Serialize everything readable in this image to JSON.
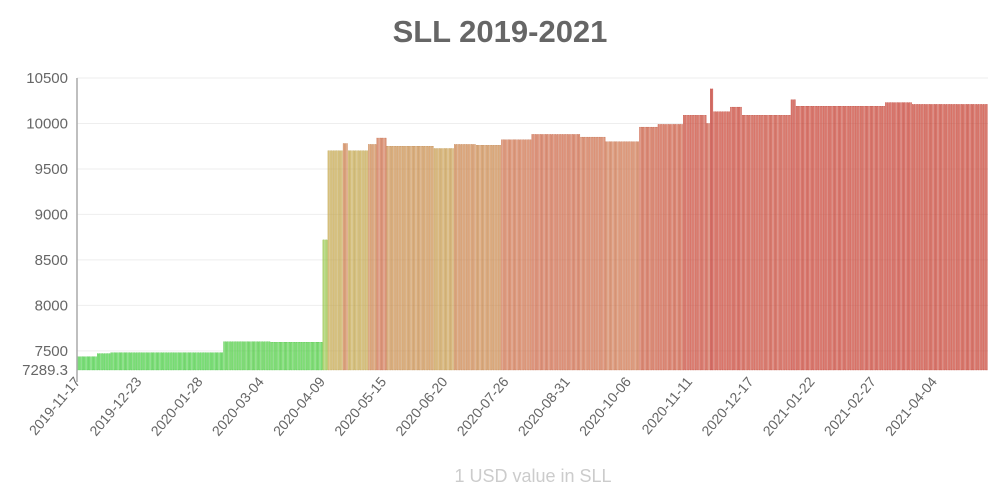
{
  "chart_data": {
    "type": "bar",
    "title": "SLL 2019-2021",
    "xlabel": "1 USD value in SLL",
    "ylabel": "",
    "ylim": [
      7289.3,
      10500
    ],
    "yticks": [
      7289.3,
      7500,
      8000,
      8500,
      9000,
      9500,
      10000,
      10500
    ],
    "ytick_labels": [
      "7289.3",
      "7500",
      "8000",
      "8500",
      "9000",
      "9500",
      "10000",
      "10500"
    ],
    "xtick_labels": [
      "2019-11-17",
      "2019-12-23",
      "2020-01-28",
      "2020-03-04",
      "2020-04-09",
      "2020-05-15",
      "2020-06-20",
      "2020-07-26",
      "2020-08-31",
      "2020-10-06",
      "2020-11-11",
      "2020-12-17",
      "2021-01-22",
      "2021-02-27",
      "2021-04-04"
    ],
    "grid": true,
    "legend": "none",
    "color_scale": "green (low) to yellow to red (high)",
    "segments": [
      {
        "from": "2019-11-17",
        "to": "2019-11-28",
        "value": 7435
      },
      {
        "from": "2019-11-29",
        "to": "2019-12-06",
        "value": 7470
      },
      {
        "from": "2019-12-07",
        "to": "2020-02-11",
        "value": 7480
      },
      {
        "from": "2020-02-12",
        "to": "2020-03-10",
        "value": 7600
      },
      {
        "from": "2020-03-11",
        "to": "2020-04-10",
        "value": 7595
      },
      {
        "from": "2020-04-11",
        "to": "2020-04-13",
        "value": 8720
      },
      {
        "from": "2020-04-14",
        "to": "2020-04-22",
        "value": 9700
      },
      {
        "from": "2020-04-23",
        "to": "2020-04-25",
        "value": 9780
      },
      {
        "from": "2020-04-26",
        "to": "2020-05-07",
        "value": 9700
      },
      {
        "from": "2020-05-08",
        "to": "2020-05-12",
        "value": 9770
      },
      {
        "from": "2020-05-13",
        "to": "2020-05-18",
        "value": 9840
      },
      {
        "from": "2020-05-19",
        "to": "2020-06-15",
        "value": 9750
      },
      {
        "from": "2020-06-16",
        "to": "2020-06-27",
        "value": 9725
      },
      {
        "from": "2020-06-28",
        "to": "2020-07-10",
        "value": 9770
      },
      {
        "from": "2020-07-11",
        "to": "2020-07-25",
        "value": 9760
      },
      {
        "from": "2020-07-26",
        "to": "2020-08-12",
        "value": 9820
      },
      {
        "from": "2020-08-13",
        "to": "2020-09-10",
        "value": 9880
      },
      {
        "from": "2020-09-11",
        "to": "2020-09-25",
        "value": 9850
      },
      {
        "from": "2020-09-26",
        "to": "2020-10-15",
        "value": 9800
      },
      {
        "from": "2020-10-16",
        "to": "2020-10-26",
        "value": 9960
      },
      {
        "from": "2020-10-27",
        "to": "2020-11-10",
        "value": 9990
      },
      {
        "from": "2020-11-11",
        "to": "2020-11-24",
        "value": 10090
      },
      {
        "from": "2020-11-25",
        "to": "2020-11-26",
        "value": 10000
      },
      {
        "from": "2020-11-27",
        "to": "2020-11-28",
        "value": 10380
      },
      {
        "from": "2020-11-29",
        "to": "2020-12-08",
        "value": 10130
      },
      {
        "from": "2020-12-09",
        "to": "2020-12-15",
        "value": 10180
      },
      {
        "from": "2020-12-16",
        "to": "2021-01-13",
        "value": 10090
      },
      {
        "from": "2021-01-14",
        "to": "2021-01-16",
        "value": 10260
      },
      {
        "from": "2021-01-17",
        "to": "2021-03-10",
        "value": 10190
      },
      {
        "from": "2021-03-11",
        "to": "2021-03-26",
        "value": 10230
      },
      {
        "from": "2021-03-27",
        "to": "2021-05-10",
        "value": 10210
      }
    ]
  }
}
